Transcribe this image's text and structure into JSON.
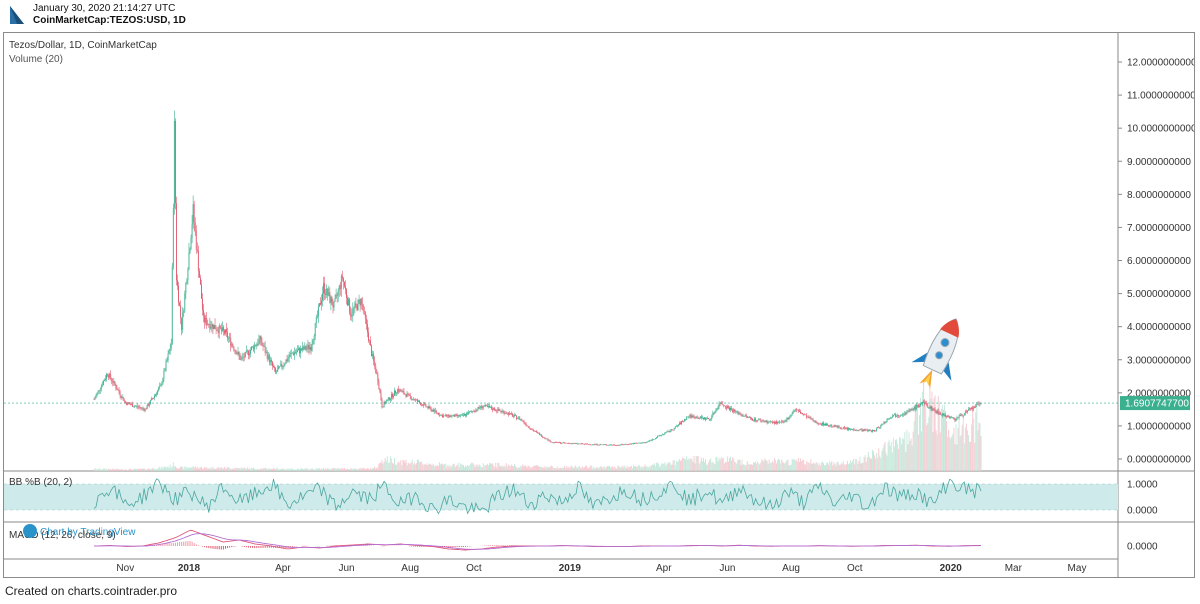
{
  "header": {
    "timestamp": "January 30, 2020 21:14:27 UTC",
    "symbol": "CoinMarketCap:TEZOS:USD, 1D",
    "logo_icon": "cointrader-logo-icon"
  },
  "footer": {
    "text": "Created on charts.cointrader.pro"
  },
  "chart_data": [
    {
      "type": "line",
      "title": "Tezos/Dollar, 1D, CoinMarketCap",
      "style": "candlestick",
      "volume_label": "Volume (20)",
      "x_tick_labels": [
        "Nov",
        "2018",
        "Apr",
        "Jun",
        "Aug",
        "Oct",
        "2019",
        "Apr",
        "Jun",
        "Aug",
        "Oct",
        "2020",
        "Mar",
        "May"
      ],
      "y_tick_labels": [
        "12.0000000000",
        "11.0000000000",
        "10.0000000000",
        "9.0000000000",
        "8.0000000000",
        "7.0000000000",
        "6.0000000000",
        "5.0000000000",
        "4.0000000000",
        "3.0000000000",
        "2.0000000000",
        "1.0000000000",
        "0.0000000000"
      ],
      "ylim": [
        0,
        12
      ],
      "last_price_label": "1.6907747700",
      "last_price": 1.69077477,
      "x": [
        "2017-10-02",
        "2017-10-15",
        "2017-11-01",
        "2017-11-20",
        "2017-12-05",
        "2017-12-15",
        "2017-12-18",
        "2017-12-20",
        "2017-12-25",
        "2018-01-05",
        "2018-01-15",
        "2018-02-05",
        "2018-02-20",
        "2018-03-10",
        "2018-03-25",
        "2018-04-10",
        "2018-04-28",
        "2018-05-10",
        "2018-05-20",
        "2018-05-28",
        "2018-06-05",
        "2018-06-15",
        "2018-06-25",
        "2018-07-01",
        "2018-07-05",
        "2018-07-20",
        "2018-08-10",
        "2018-09-01",
        "2018-09-20",
        "2018-10-10",
        "2018-11-01",
        "2018-11-15",
        "2018-11-25",
        "2018-12-15",
        "2019-01-15",
        "2019-02-15",
        "2019-03-15",
        "2019-04-10",
        "2019-04-25",
        "2019-05-15",
        "2019-05-25",
        "2019-06-10",
        "2019-06-25",
        "2019-07-15",
        "2019-07-25",
        "2019-08-05",
        "2019-08-25",
        "2019-09-25",
        "2019-10-20",
        "2019-11-05",
        "2019-11-20",
        "2019-12-05",
        "2019-12-20",
        "2020-01-05",
        "2020-01-20",
        "2020-01-30"
      ],
      "series": [
        {
          "values": [
            1.8,
            2.6,
            1.7,
            1.5,
            2.2,
            3.5,
            10.0,
            5.5,
            4.0,
            7.5,
            4.2,
            3.8,
            3.0,
            3.6,
            2.6,
            3.2,
            3.4,
            5.2,
            4.6,
            5.5,
            4.4,
            4.8,
            3.2,
            2.4,
            1.6,
            2.1,
            1.7,
            1.3,
            1.3,
            1.6,
            1.4,
            1.2,
            0.9,
            0.5,
            0.45,
            0.42,
            0.5,
            0.9,
            1.3,
            1.2,
            1.7,
            1.4,
            1.2,
            1.1,
            1.1,
            1.5,
            1.1,
            0.9,
            0.85,
            1.3,
            1.4,
            1.7,
            1.4,
            1.2,
            1.5,
            1.69
          ]
        }
      ],
      "volume_values": [
        0.05,
        0.05,
        0.04,
        0.05,
        0.08,
        0.12,
        0.18,
        0.1,
        0.08,
        0.1,
        0.08,
        0.08,
        0.07,
        0.06,
        0.06,
        0.05,
        0.05,
        0.06,
        0.06,
        0.06,
        0.06,
        0.06,
        0.06,
        0.1,
        0.3,
        0.25,
        0.2,
        0.15,
        0.15,
        0.15,
        0.15,
        0.12,
        0.12,
        0.1,
        0.1,
        0.1,
        0.12,
        0.2,
        0.3,
        0.25,
        0.3,
        0.25,
        0.2,
        0.25,
        0.2,
        0.25,
        0.2,
        0.2,
        0.4,
        0.6,
        0.8,
        1.6,
        1.4,
        1.0,
        1.1,
        1.2
      ]
    },
    {
      "type": "line",
      "title": "BB %B (20, 2)",
      "y_tick_labels": [
        "1.0000",
        "0.0000"
      ],
      "band": [
        0,
        1
      ],
      "values": [
        0.3,
        0.9,
        0.2,
        0.5,
        1.1,
        0.4,
        0.7,
        0.1,
        0.9,
        0.3,
        0.6,
        1.0,
        0.2,
        0.5,
        0.8,
        0.1,
        0.7,
        0.4,
        0.9,
        0.2,
        0.6,
        0.0,
        0.4,
        0.1,
        -0.1,
        0.5,
        0.8,
        0.2,
        0.6,
        0.3,
        0.9,
        0.1,
        0.5,
        0.8,
        0.4,
        0.7,
        1.0,
        0.3,
        0.8,
        0.2,
        0.9,
        0.4,
        0.1,
        0.7,
        0.3,
        0.9,
        0.2,
        0.6,
        0.1,
        0.9,
        0.5,
        0.7,
        0.2,
        1.1,
        0.8,
        0.7
      ]
    },
    {
      "type": "line",
      "title": "MACD (12, 26, close, 9)",
      "watermark": "Chart by TradingView",
      "y_tick_labels": [
        "0.0000"
      ],
      "values": [
        0.0,
        0.05,
        -0.05,
        0.0,
        0.3,
        0.8,
        1.6,
        1.0,
        0.4,
        0.6,
        0.2,
        0.0,
        -0.3,
        -0.1,
        -0.2,
        0.0,
        0.1,
        0.2,
        0.1,
        0.2,
        0.05,
        -0.05,
        -0.3,
        -0.4,
        -0.3,
        -0.1,
        0.0,
        0.0,
        0.0,
        0.05,
        0.0,
        -0.05,
        -0.05,
        -0.05,
        0.0,
        0.0,
        0.0,
        0.05,
        0.05,
        0.0,
        0.08,
        0.0,
        -0.03,
        0.0,
        0.0,
        0.04,
        0.0,
        -0.03,
        0.0,
        0.05,
        0.05,
        0.08,
        0.0,
        -0.03,
        0.04,
        0.05
      ]
    }
  ],
  "decoration": {
    "rocket_icon": "rocket-icon"
  },
  "colors": {
    "up": "#3bb08f",
    "down": "#e05a6e",
    "band": "#cfeaea",
    "bb_line": "#4aa7a0",
    "macd_line": "#e0557a",
    "signal_line": "#b56fd1",
    "last_price_bg": "#3bb08f"
  }
}
